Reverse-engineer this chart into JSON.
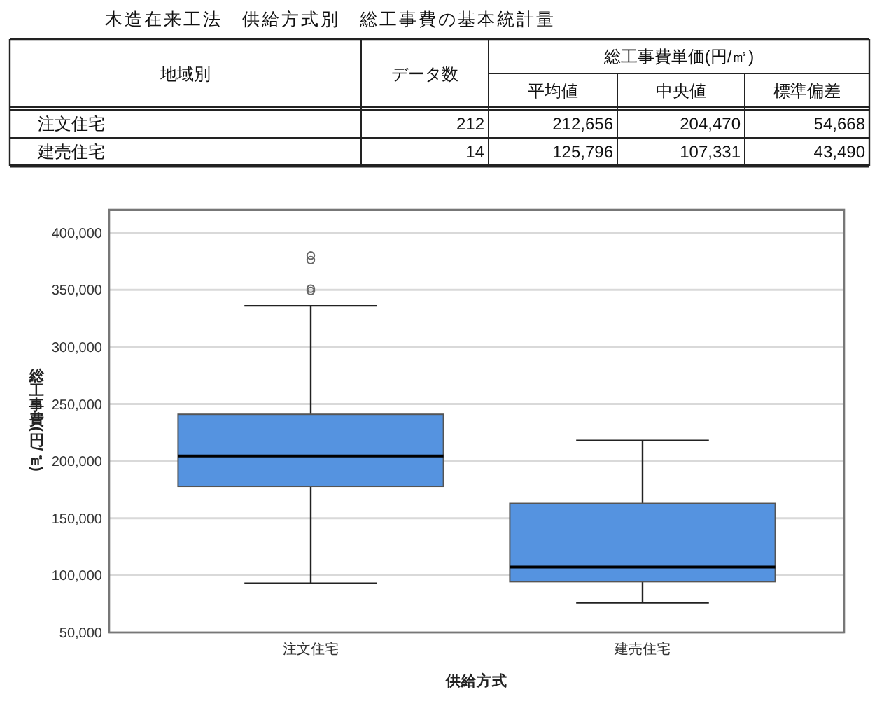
{
  "chart_data": [
    {
      "type": "other",
      "title": "木造在来工法　供給方式別　総工事費の基本統計量",
      "annotations": [
        "地域別",
        "データ数",
        "総工事費単価(円/㎡)",
        "平均値",
        "中央値",
        "標準偏差",
        "注文住宅",
        "212",
        "212,656",
        "204,470",
        "54,668",
        "建売住宅",
        "14",
        "125,796",
        "107,331",
        "43,490"
      ]
    },
    {
      "type": "box",
      "categories": [
        "注文住宅",
        "建売住宅"
      ],
      "boxes": [
        {
          "low": 93000,
          "q1": 178000,
          "median": 204470,
          "q3": 241000,
          "high": 336000,
          "outliers": [
            349000,
            351000,
            376000,
            380000
          ]
        },
        {
          "low": 76000,
          "q1": 94500,
          "median": 107331,
          "q3": 163000,
          "high": 218000
        }
      ],
      "color": "#5593e0",
      "xlabel": "供給方式",
      "ylabel": "総工事費(円/㎡)",
      "ylim": [
        50000,
        420000
      ],
      "yticks": [
        {
          "value": 50000,
          "label": "50,000"
        },
        {
          "value": 100000,
          "label": "100,000"
        },
        {
          "value": 150000,
          "label": "150,000"
        },
        {
          "value": 200000,
          "label": "200,000"
        },
        {
          "value": 250000,
          "label": "250,000"
        },
        {
          "value": 300000,
          "label": "300,000"
        },
        {
          "value": 350000,
          "label": "350,000"
        },
        {
          "value": 400000,
          "label": "400,000"
        }
      ],
      "grid": "y"
    }
  ]
}
